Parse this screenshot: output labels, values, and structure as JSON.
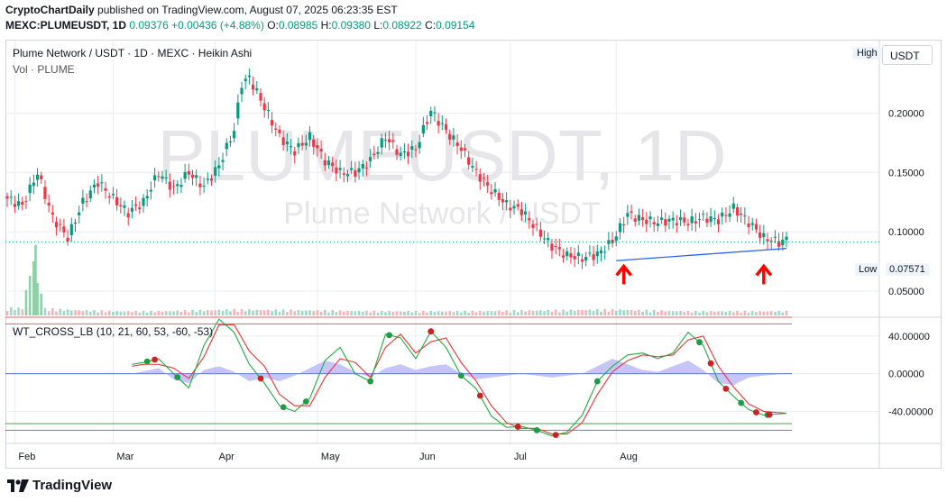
{
  "header": {
    "publisher": "CryptoChartDaily",
    "published_text": "published on TradingView.com, August 07, 2025 06:23:35 EST",
    "symbol_line": "MEXC:PLUMEUSDT, 1D",
    "last": "0.09376",
    "change": "+0.00436 (+4.88%)",
    "o_label": "O:",
    "o": "0.08985",
    "h_label": "H:",
    "h": "0.09380",
    "l_label": "L:",
    "l": "0.08922",
    "c_label": "C:",
    "c": "0.09154"
  },
  "legend": {
    "main": "Plume Network / USDT · 1D · MEXC · Heikin Ashi",
    "volume": "Vol · PLUME",
    "indicator": "WT_CROSS_LB (10, 21, 60, 53, -60, -53)"
  },
  "watermark": {
    "symbol": "PLUMEUSDT, 1D",
    "name": "Plume Network / USDT"
  },
  "currency_button": "USDT",
  "high_tag": "High",
  "low_tag": "Low",
  "low_value": "0.07571",
  "footer": {
    "brand": "TradingView"
  },
  "colors": {
    "up": "#089981",
    "down": "#f23645",
    "line": "#2962ff",
    "arrow": "#ff0000",
    "wt1": "#22aa44",
    "wt2": "#ee3333",
    "area": "#9598f0"
  },
  "chart_data": {
    "type": "candlestick",
    "price_axis": {
      "ticks": [
        0.2,
        0.15,
        0.1,
        0.05
      ],
      "tick_labels": [
        "0.20000",
        "0.15000",
        "0.10000",
        "0.05000"
      ],
      "ylim": [
        0.028,
        0.262
      ]
    },
    "time_axis": {
      "labels": [
        "Feb",
        "Mar",
        "Apr",
        "May",
        "Jun",
        "Jul",
        "Aug"
      ]
    },
    "price_path": [
      [
        0,
        0.128
      ],
      [
        4,
        0.122
      ],
      [
        8,
        0.15
      ],
      [
        12,
        0.112
      ],
      [
        16,
        0.095
      ],
      [
        20,
        0.125
      ],
      [
        24,
        0.142
      ],
      [
        28,
        0.128
      ],
      [
        32,
        0.116
      ],
      [
        36,
        0.125
      ],
      [
        40,
        0.15
      ],
      [
        44,
        0.136
      ],
      [
        48,
        0.15
      ],
      [
        52,
        0.138
      ],
      [
        56,
        0.156
      ],
      [
        60,
        0.186
      ],
      [
        62,
        0.225
      ],
      [
        64,
        0.23
      ],
      [
        68,
        0.205
      ],
      [
        72,
        0.18
      ],
      [
        76,
        0.168
      ],
      [
        80,
        0.18
      ],
      [
        84,
        0.16
      ],
      [
        88,
        0.15
      ],
      [
        92,
        0.15
      ],
      [
        96,
        0.16
      ],
      [
        100,
        0.18
      ],
      [
        104,
        0.165
      ],
      [
        108,
        0.17
      ],
      [
        112,
        0.202
      ],
      [
        116,
        0.185
      ],
      [
        120,
        0.17
      ],
      [
        124,
        0.15
      ],
      [
        128,
        0.135
      ],
      [
        132,
        0.123
      ],
      [
        136,
        0.118
      ],
      [
        140,
        0.102
      ],
      [
        144,
        0.088
      ],
      [
        148,
        0.08
      ],
      [
        152,
        0.078
      ],
      [
        156,
        0.081
      ],
      [
        160,
        0.092
      ],
      [
        164,
        0.115
      ],
      [
        168,
        0.11
      ],
      [
        172,
        0.108
      ],
      [
        176,
        0.11
      ],
      [
        180,
        0.108
      ],
      [
        184,
        0.112
      ],
      [
        188,
        0.11
      ],
      [
        192,
        0.12
      ],
      [
        196,
        0.108
      ],
      [
        200,
        0.095
      ],
      [
        204,
        0.091
      ],
      [
        206,
        0.0937
      ]
    ],
    "trendline": {
      "from": [
        161,
        0.0757
      ],
      "to": [
        206,
        0.086
      ]
    },
    "horizontal_level": 0.0915,
    "volume_path": [
      [
        0,
        0.09
      ],
      [
        10,
        0.08
      ],
      [
        20,
        0.06
      ],
      [
        30,
        0.05
      ],
      [
        40,
        0.05
      ],
      [
        60,
        0.07
      ],
      [
        80,
        0.06
      ],
      [
        100,
        0.05
      ],
      [
        120,
        0.05
      ],
      [
        140,
        0.06
      ],
      [
        160,
        0.07
      ],
      [
        180,
        0.05
      ],
      [
        206,
        0.05
      ]
    ],
    "volume_spikes": [
      [
        5,
        0.35
      ],
      [
        6,
        0.55
      ],
      [
        7,
        0.75
      ],
      [
        8,
        0.45
      ],
      [
        9,
        0.3
      ],
      [
        7.5,
        0.98
      ]
    ],
    "oscillator": {
      "name": "WT_CROSS_LB",
      "ticks": [
        40,
        0,
        -40
      ],
      "tick_labels": [
        "40.00000",
        "0.00000",
        "-40.00000"
      ],
      "ylim": [
        -74,
        60
      ],
      "levels": [
        60,
        53,
        -53,
        -60
      ],
      "wt1_path": [
        [
          33,
          10
        ],
        [
          36,
          12
        ],
        [
          40,
          16
        ],
        [
          44,
          0
        ],
        [
          48,
          -15
        ],
        [
          52,
          30
        ],
        [
          56,
          58
        ],
        [
          60,
          44
        ],
        [
          64,
          10
        ],
        [
          68,
          -10
        ],
        [
          72,
          -34
        ],
        [
          76,
          -40
        ],
        [
          80,
          -26
        ],
        [
          84,
          14
        ],
        [
          88,
          28
        ],
        [
          92,
          0
        ],
        [
          96,
          -8
        ],
        [
          100,
          42
        ],
        [
          104,
          38
        ],
        [
          108,
          16
        ],
        [
          112,
          45
        ],
        [
          116,
          28
        ],
        [
          120,
          -2
        ],
        [
          124,
          -16
        ],
        [
          128,
          -45
        ],
        [
          132,
          -57
        ],
        [
          136,
          -56
        ],
        [
          140,
          -60
        ],
        [
          144,
          -66
        ],
        [
          148,
          -62
        ],
        [
          152,
          -44
        ],
        [
          156,
          -8
        ],
        [
          160,
          8
        ],
        [
          164,
          20
        ],
        [
          168,
          22
        ],
        [
          172,
          16
        ],
        [
          176,
          22
        ],
        [
          180,
          44
        ],
        [
          184,
          30
        ],
        [
          188,
          -8
        ],
        [
          192,
          -24
        ],
        [
          196,
          -38
        ],
        [
          200,
          -44
        ],
        [
          206,
          -42
        ]
      ],
      "wt2_path": [
        [
          33,
          8
        ],
        [
          36,
          10
        ],
        [
          40,
          10
        ],
        [
          44,
          6
        ],
        [
          48,
          -5
        ],
        [
          52,
          18
        ],
        [
          56,
          52
        ],
        [
          60,
          52
        ],
        [
          64,
          24
        ],
        [
          68,
          8
        ],
        [
          72,
          -22
        ],
        [
          76,
          -34
        ],
        [
          80,
          -34
        ],
        [
          84,
          -4
        ],
        [
          88,
          16
        ],
        [
          92,
          12
        ],
        [
          96,
          -4
        ],
        [
          100,
          28
        ],
        [
          104,
          42
        ],
        [
          108,
          22
        ],
        [
          112,
          34
        ],
        [
          116,
          38
        ],
        [
          120,
          12
        ],
        [
          124,
          -8
        ],
        [
          128,
          -34
        ],
        [
          132,
          -52
        ],
        [
          136,
          -58
        ],
        [
          140,
          -58
        ],
        [
          144,
          -64
        ],
        [
          148,
          -64
        ],
        [
          152,
          -52
        ],
        [
          156,
          -22
        ],
        [
          160,
          2
        ],
        [
          164,
          14
        ],
        [
          168,
          20
        ],
        [
          172,
          18
        ],
        [
          176,
          20
        ],
        [
          180,
          36
        ],
        [
          184,
          40
        ],
        [
          188,
          8
        ],
        [
          192,
          -14
        ],
        [
          196,
          -32
        ],
        [
          200,
          -40
        ],
        [
          206,
          -42
        ]
      ],
      "area_path": [
        [
          33,
          0
        ],
        [
          40,
          6
        ],
        [
          44,
          -6
        ],
        [
          48,
          -10
        ],
        [
          52,
          4
        ],
        [
          56,
          8
        ],
        [
          60,
          2
        ],
        [
          64,
          -8
        ],
        [
          68,
          -4
        ],
        [
          72,
          -8
        ],
        [
          76,
          -2
        ],
        [
          80,
          6
        ],
        [
          84,
          14
        ],
        [
          88,
          10
        ],
        [
          92,
          2
        ],
        [
          96,
          -4
        ],
        [
          100,
          6
        ],
        [
          104,
          10
        ],
        [
          108,
          4
        ],
        [
          112,
          8
        ],
        [
          116,
          10
        ],
        [
          120,
          0
        ],
        [
          124,
          -6
        ],
        [
          128,
          -4
        ],
        [
          132,
          -2
        ],
        [
          136,
          0
        ],
        [
          140,
          -2
        ],
        [
          144,
          -4
        ],
        [
          148,
          -2
        ],
        [
          152,
          0
        ],
        [
          156,
          8
        ],
        [
          160,
          16
        ],
        [
          164,
          10
        ],
        [
          168,
          4
        ],
        [
          172,
          2
        ],
        [
          176,
          8
        ],
        [
          180,
          14
        ],
        [
          184,
          4
        ],
        [
          188,
          -10
        ],
        [
          192,
          -12
        ],
        [
          196,
          -4
        ],
        [
          200,
          -2
        ],
        [
          206,
          0
        ]
      ],
      "cross_dots": [
        [
          37,
          "up"
        ],
        [
          39,
          "down"
        ],
        [
          45,
          "up"
        ],
        [
          67,
          "down"
        ],
        [
          73,
          "up"
        ],
        [
          79,
          "up"
        ],
        [
          96,
          "up"
        ],
        [
          101,
          "up"
        ],
        [
          112,
          "down"
        ],
        [
          120,
          "up"
        ],
        [
          125,
          "down"
        ],
        [
          135,
          "down"
        ],
        [
          140,
          "up"
        ],
        [
          145,
          "down"
        ],
        [
          156,
          "up"
        ],
        [
          183,
          "up"
        ],
        [
          186,
          "down"
        ],
        [
          190,
          "down"
        ],
        [
          194,
          "up"
        ],
        [
          198,
          "down"
        ],
        [
          201,
          "up"
        ],
        [
          201.5,
          "down"
        ]
      ]
    }
  }
}
